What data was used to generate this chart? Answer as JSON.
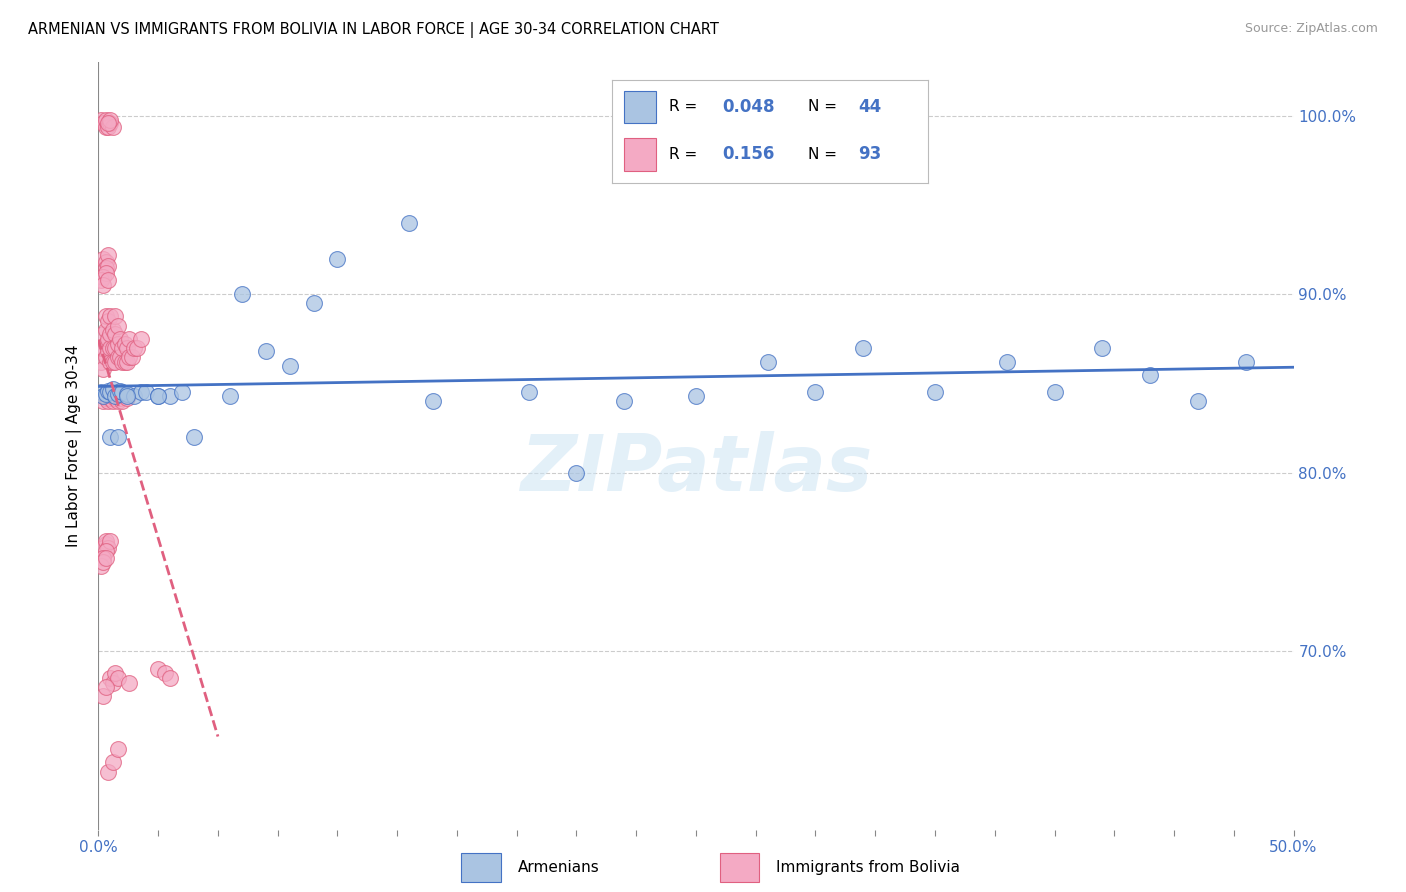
{
  "title": "ARMENIAN VS IMMIGRANTS FROM BOLIVIA IN LABOR FORCE | AGE 30-34 CORRELATION CHART",
  "source": "Source: ZipAtlas.com",
  "ylabel": "In Labor Force | Age 30-34",
  "xlim": [
    0.0,
    0.5
  ],
  "ylim": [
    0.6,
    1.03
  ],
  "y_ticks": [
    0.7,
    0.8,
    0.9,
    1.0
  ],
  "y_tick_labels": [
    "70.0%",
    "80.0%",
    "90.0%",
    "100.0%"
  ],
  "R_armenian": 0.048,
  "N_armenian": 44,
  "R_bolivia": 0.156,
  "N_bolivia": 93,
  "color_armenian": "#aac4e2",
  "color_bolivia": "#f4aac4",
  "line_color_armenian": "#4472c4",
  "line_color_bolivia": "#e06080",
  "watermark": "ZIPatlas",
  "arm_x": [
    0.001,
    0.002,
    0.003,
    0.004,
    0.005,
    0.006,
    0.007,
    0.008,
    0.009,
    0.01,
    0.012,
    0.015,
    0.018,
    0.02,
    0.025,
    0.03,
    0.035,
    0.04,
    0.055,
    0.07,
    0.08,
    0.1,
    0.13,
    0.14,
    0.18,
    0.2,
    0.22,
    0.25,
    0.28,
    0.3,
    0.32,
    0.35,
    0.38,
    0.4,
    0.42,
    0.44,
    0.46,
    0.48,
    0.005,
    0.008,
    0.012,
    0.025,
    0.06,
    0.09
  ],
  "arm_y": [
    0.845,
    0.843,
    0.844,
    0.846,
    0.845,
    0.847,
    0.843,
    0.844,
    0.846,
    0.845,
    0.844,
    0.843,
    0.845,
    0.845,
    0.843,
    0.843,
    0.845,
    0.82,
    0.843,
    0.868,
    0.86,
    0.92,
    0.94,
    0.84,
    0.845,
    0.8,
    0.84,
    0.843,
    0.862,
    0.845,
    0.87,
    0.845,
    0.862,
    0.845,
    0.87,
    0.855,
    0.84,
    0.862,
    0.82,
    0.82,
    0.843,
    0.843,
    0.9,
    0.895
  ],
  "bol_x": [
    0.001,
    0.001,
    0.002,
    0.002,
    0.002,
    0.003,
    0.003,
    0.003,
    0.003,
    0.004,
    0.004,
    0.004,
    0.005,
    0.005,
    0.005,
    0.005,
    0.006,
    0.006,
    0.006,
    0.007,
    0.007,
    0.007,
    0.007,
    0.008,
    0.008,
    0.008,
    0.009,
    0.009,
    0.01,
    0.01,
    0.011,
    0.011,
    0.012,
    0.012,
    0.013,
    0.013,
    0.014,
    0.015,
    0.016,
    0.018,
    0.002,
    0.003,
    0.004,
    0.005,
    0.006,
    0.007,
    0.008,
    0.009,
    0.01,
    0.012,
    0.001,
    0.002,
    0.003,
    0.004,
    0.003,
    0.004,
    0.005,
    0.006,
    0.005,
    0.004,
    0.002,
    0.003,
    0.004,
    0.003,
    0.004,
    0.002,
    0.001,
    0.003,
    0.002,
    0.004,
    0.003,
    0.002,
    0.003,
    0.004,
    0.005,
    0.003,
    0.002,
    0.001,
    0.002,
    0.003,
    0.005,
    0.006,
    0.007,
    0.008,
    0.025,
    0.028,
    0.03,
    0.013,
    0.002,
    0.003,
    0.004,
    0.006,
    0.008
  ],
  "bol_y": [
    0.862,
    0.87,
    0.858,
    0.87,
    0.878,
    0.865,
    0.872,
    0.88,
    0.888,
    0.868,
    0.875,
    0.885,
    0.862,
    0.87,
    0.878,
    0.888,
    0.862,
    0.87,
    0.88,
    0.862,
    0.87,
    0.878,
    0.888,
    0.865,
    0.872,
    0.882,
    0.865,
    0.875,
    0.862,
    0.87,
    0.862,
    0.872,
    0.862,
    0.87,
    0.865,
    0.875,
    0.865,
    0.87,
    0.87,
    0.875,
    0.84,
    0.842,
    0.84,
    0.842,
    0.84,
    0.842,
    0.84,
    0.842,
    0.84,
    0.842,
    0.998,
    0.996,
    0.994,
    0.996,
    0.998,
    0.994,
    0.996,
    0.994,
    0.998,
    0.996,
    0.92,
    0.918,
    0.922,
    0.915,
    0.916,
    0.91,
    0.908,
    0.912,
    0.905,
    0.908,
    0.76,
    0.758,
    0.762,
    0.758,
    0.762,
    0.756,
    0.752,
    0.748,
    0.75,
    0.752,
    0.685,
    0.682,
    0.688,
    0.685,
    0.69,
    0.688,
    0.685,
    0.682,
    0.675,
    0.68,
    0.632,
    0.638,
    0.645
  ]
}
